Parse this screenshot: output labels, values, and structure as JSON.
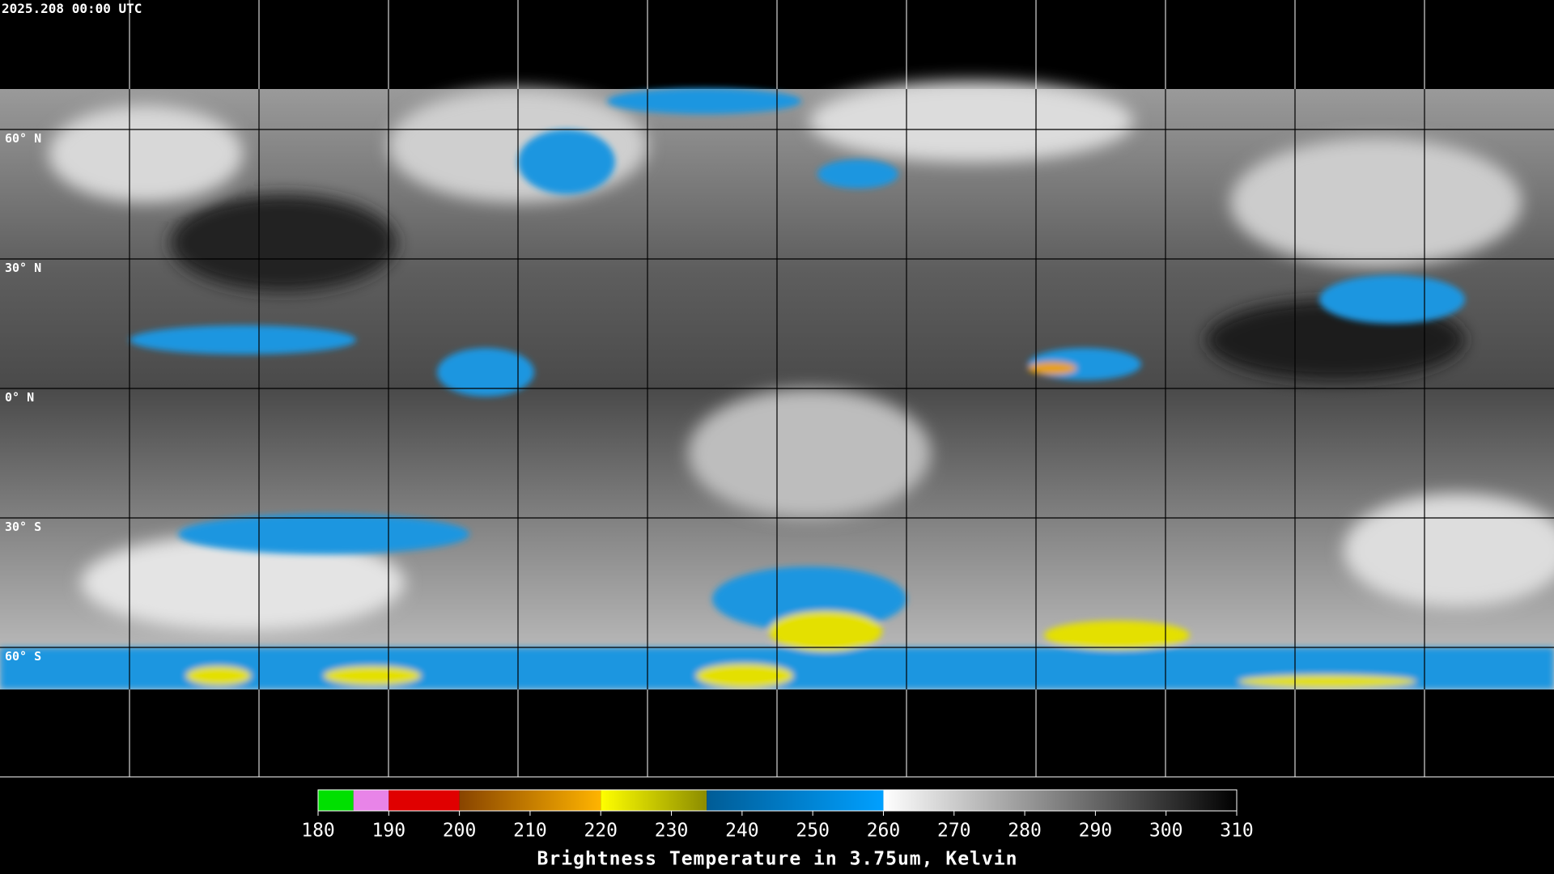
{
  "timestamp": "2025.208 00:00 UTC",
  "lat_lines": [
    {
      "value": 60,
      "label": "60° N"
    },
    {
      "value": 30,
      "label": "30° N"
    },
    {
      "value": 0,
      "label": "0° N"
    },
    {
      "value": -30,
      "label": "30° S"
    },
    {
      "value": -60,
      "label": "60° S"
    }
  ],
  "lon_lines": [
    -150,
    -120,
    -90,
    -60,
    -30,
    0,
    30,
    60,
    90,
    120,
    150
  ],
  "colorbar": {
    "lim": [
      180,
      310
    ],
    "ticks": [
      180,
      190,
      200,
      210,
      220,
      230,
      240,
      250,
      260,
      270,
      280,
      290,
      300,
      310
    ],
    "label": "Brightness Temperature in 3.75um, Kelvin",
    "segments": [
      {
        "from": 180,
        "to": 185,
        "colors": [
          "#00e000",
          "#00e000"
        ]
      },
      {
        "from": 185,
        "to": 190,
        "colors": [
          "#e884e8",
          "#e884e8"
        ]
      },
      {
        "from": 190,
        "to": 200,
        "colors": [
          "#e00000",
          "#e00000"
        ]
      },
      {
        "from": 200,
        "to": 220,
        "colors": [
          "#884400",
          "#ffb400"
        ]
      },
      {
        "from": 220,
        "to": 235,
        "colors": [
          "#ffff00",
          "#8c8c00"
        ]
      },
      {
        "from": 235,
        "to": 260,
        "colors": [
          "#005c96",
          "#00a0ff"
        ]
      },
      {
        "from": 260,
        "to": 310,
        "colors": [
          "#ffffff",
          "#000000"
        ]
      }
    ]
  }
}
